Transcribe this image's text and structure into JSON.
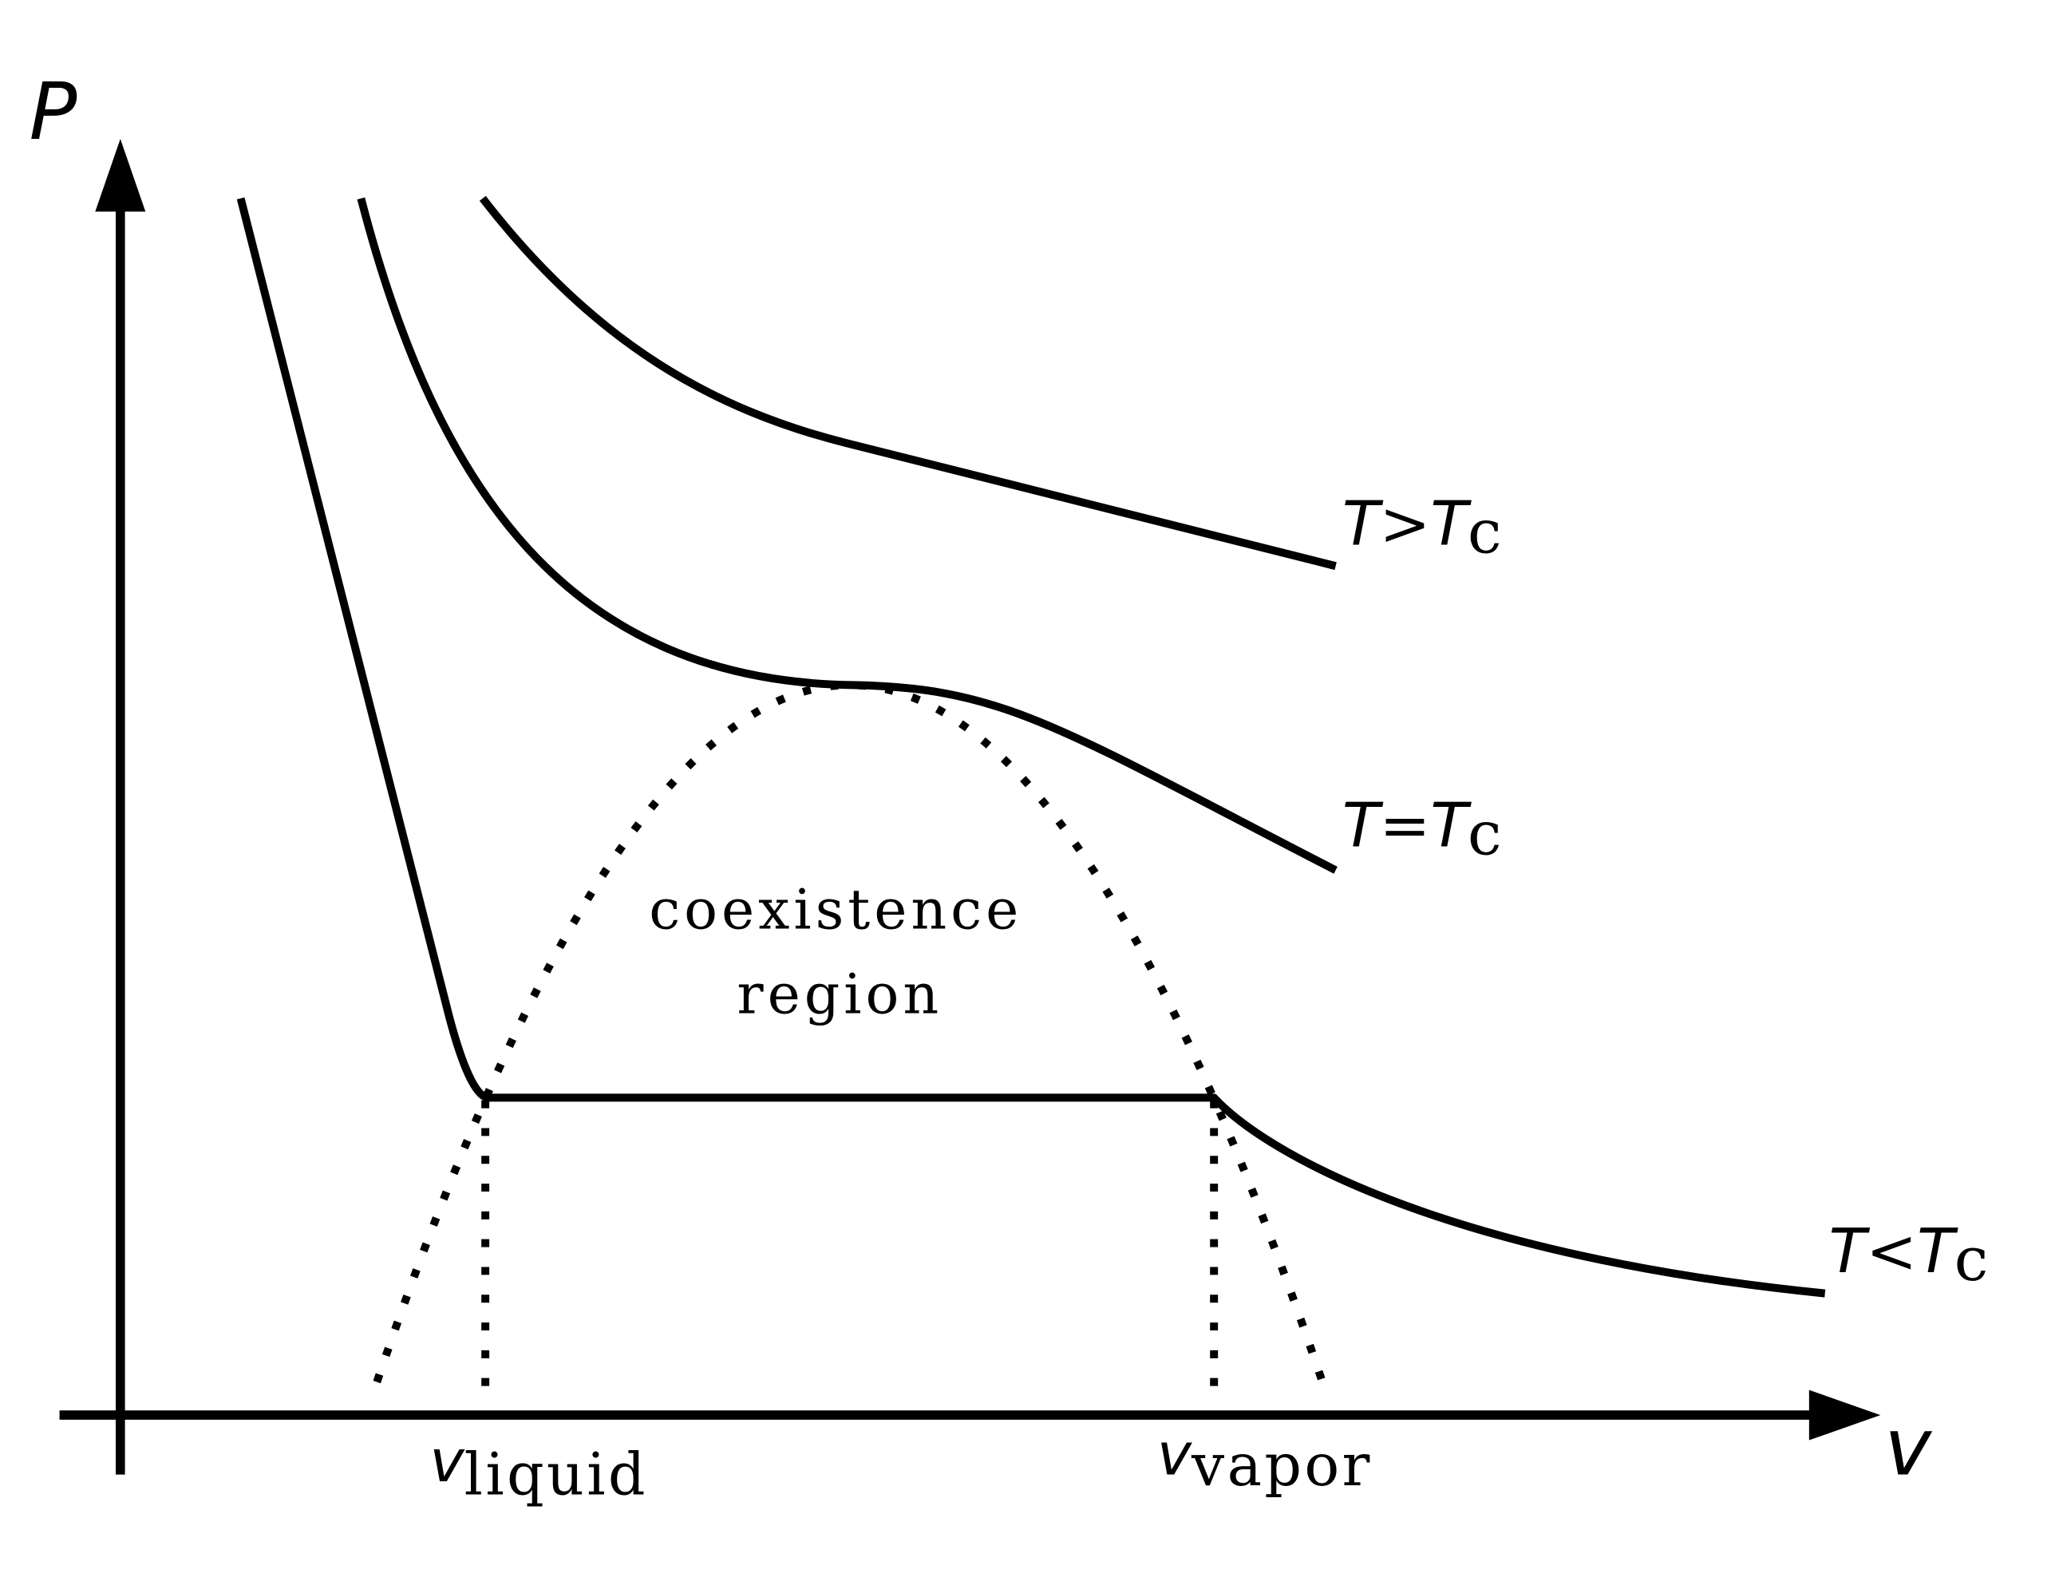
{
  "axes": {
    "y_label": "P",
    "x_label": "v"
  },
  "isotherms": [
    {
      "lhs": "T",
      "relation": ">",
      "rhs": "T",
      "subscript": "c"
    },
    {
      "lhs": "T",
      "relation": "=",
      "rhs": "T",
      "subscript": "c"
    },
    {
      "lhs": "T",
      "relation": "<",
      "rhs": "T",
      "subscript": "c"
    }
  ],
  "region_label": [
    "coexistence",
    "region"
  ],
  "volume_markers": [
    {
      "symbol": "v",
      "subscript": "liquid"
    },
    {
      "symbol": "v",
      "subscript": "vapor"
    }
  ]
}
